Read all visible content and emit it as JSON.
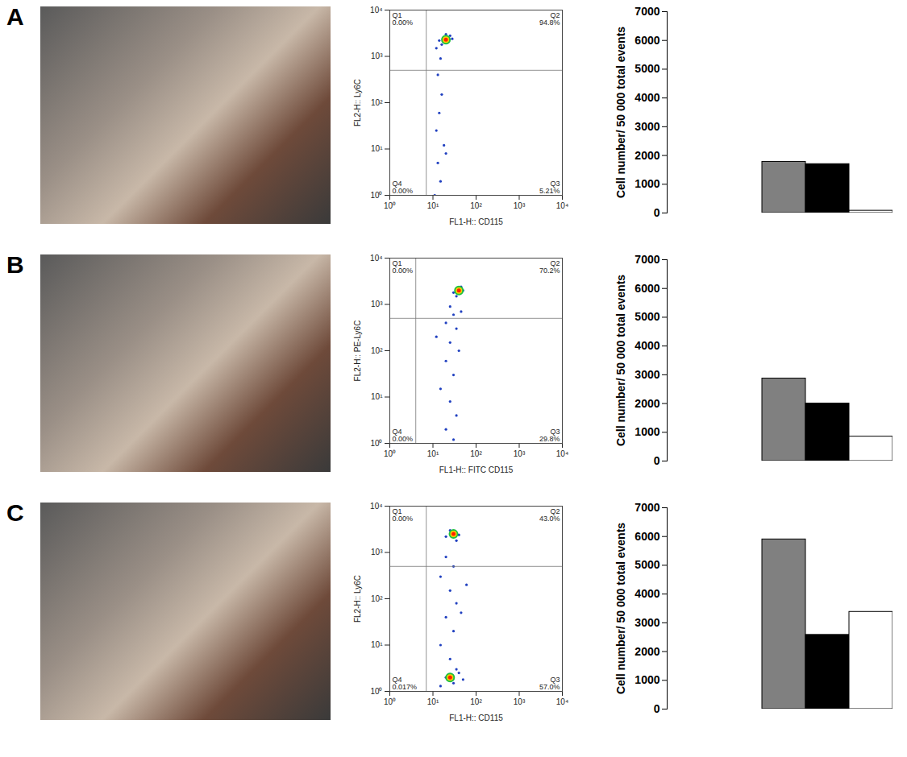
{
  "chart_data": [
    {
      "panel": "A",
      "type": "scatter",
      "log": true,
      "x_label": "FL1-H:: CD115",
      "y_label": "FL2-H:: Ly6C",
      "xlim": [
        1,
        10000
      ],
      "ylim": [
        1,
        10000
      ],
      "xticks": [
        {
          "value": 1,
          "label": "10⁰"
        },
        {
          "value": 10,
          "label": "10¹"
        },
        {
          "value": 100,
          "label": "10²"
        },
        {
          "value": 1000,
          "label": "10³"
        },
        {
          "value": 10000,
          "label": "10⁴"
        }
      ],
      "yticks": [
        {
          "value": 1,
          "label": "10⁰"
        },
        {
          "value": 10,
          "label": "10¹"
        },
        {
          "value": 100,
          "label": "10²"
        },
        {
          "value": 1000,
          "label": "10³"
        },
        {
          "value": 10000,
          "label": "10⁴"
        }
      ],
      "gate": {
        "x": 7,
        "y": 500
      },
      "quadrants": [
        {
          "name": "Q1",
          "label": "0.00%"
        },
        {
          "name": "Q2",
          "label": "94.8%"
        },
        {
          "name": "Q3",
          "label": "5.21%"
        },
        {
          "name": "Q4",
          "label": "0.00%"
        }
      ],
      "x": [
        14,
        18,
        22,
        25,
        16,
        20,
        28,
        12,
        15,
        13,
        16,
        14,
        12,
        18,
        13,
        15,
        20,
        11
      ],
      "y": [
        2200,
        2500,
        2000,
        2800,
        1800,
        3000,
        2400,
        1500,
        900,
        400,
        150,
        60,
        25,
        12,
        5,
        2,
        8,
        1
      ],
      "peaks": {
        "x": [
          20
        ],
        "y": [
          2300
        ]
      }
    },
    {
      "panel": "A",
      "type": "bar",
      "y_label": "Cell number/ 50 000 total events",
      "categories": [
        null,
        null,
        null
      ],
      "values": [
        1780,
        1700,
        80
      ],
      "colors": [
        "#808080",
        "#000000",
        "#ffffff"
      ],
      "ylim": [
        0,
        7000
      ],
      "yticks": [
        0,
        1000,
        2000,
        3000,
        4000,
        5000,
        6000,
        7000
      ],
      "tick_labels": "y"
    },
    {
      "panel": "B",
      "type": "scatter",
      "log": true,
      "x_label": "FL1-H:: FITC CD115",
      "y_label": "FL2-H:: PE-Ly6C",
      "xlim": [
        1,
        10000
      ],
      "ylim": [
        1,
        10000
      ],
      "xticks": [
        {
          "value": 1,
          "label": "10⁰"
        },
        {
          "value": 10,
          "label": "10¹"
        },
        {
          "value": 100,
          "label": "10²"
        },
        {
          "value": 1000,
          "label": "10³"
        },
        {
          "value": 10000,
          "label": "10⁴"
        }
      ],
      "yticks": [
        {
          "value": 1,
          "label": "10⁰"
        },
        {
          "value": 10,
          "label": "10¹"
        },
        {
          "value": 100,
          "label": "10²"
        },
        {
          "value": 1000,
          "label": "10³"
        },
        {
          "value": 10000,
          "label": "10⁴"
        }
      ],
      "gate": {
        "x": 4,
        "y": 500
      },
      "quadrants": [
        {
          "name": "Q1",
          "label": "0.00%"
        },
        {
          "name": "Q2",
          "label": "70.2%"
        },
        {
          "name": "Q3",
          "label": "29.8%"
        },
        {
          "name": "Q4",
          "label": "0.00%"
        }
      ],
      "x": [
        30,
        40,
        50,
        45,
        35,
        25,
        30,
        20,
        35,
        25,
        40,
        20,
        30,
        15,
        25,
        35,
        20,
        30,
        45,
        12
      ],
      "y": [
        1800,
        2200,
        2000,
        2400,
        1500,
        900,
        600,
        400,
        300,
        150,
        100,
        60,
        30,
        15,
        8,
        4,
        2,
        1.2,
        700,
        200
      ],
      "peaks": {
        "x": [
          40
        ],
        "y": [
          2000
        ]
      }
    },
    {
      "panel": "B",
      "type": "bar",
      "y_label": "Cell number/ 50 000 total events",
      "categories": [
        null,
        null,
        null
      ],
      "values": [
        2870,
        2000,
        850
      ],
      "colors": [
        "#808080",
        "#000000",
        "#ffffff"
      ],
      "ylim": [
        0,
        7000
      ],
      "yticks": [
        0,
        1000,
        2000,
        3000,
        4000,
        5000,
        6000,
        7000
      ],
      "tick_labels": "y"
    },
    {
      "panel": "C",
      "type": "scatter",
      "log": true,
      "x_label": "FL1-H:: CD115",
      "y_label": "FL2-H:: Ly6C",
      "xlim": [
        1,
        10000
      ],
      "ylim": [
        1,
        10000
      ],
      "xticks": [
        {
          "value": 1,
          "label": "10⁰"
        },
        {
          "value": 10,
          "label": "10¹"
        },
        {
          "value": 100,
          "label": "10²"
        },
        {
          "value": 1000,
          "label": "10³"
        },
        {
          "value": 10000,
          "label": "10⁴"
        }
      ],
      "yticks": [
        {
          "value": 1,
          "label": "10⁰"
        },
        {
          "value": 10,
          "label": "10¹"
        },
        {
          "value": 100,
          "label": "10²"
        },
        {
          "value": 1000,
          "label": "10³"
        },
        {
          "value": 10000,
          "label": "10⁴"
        }
      ],
      "gate": {
        "x": 7,
        "y": 500
      },
      "quadrants": [
        {
          "name": "Q1",
          "label": "0.00%"
        },
        {
          "name": "Q2",
          "label": "43.0%"
        },
        {
          "name": "Q3",
          "label": "57.0%"
        },
        {
          "name": "Q4",
          "label": "0.017%"
        }
      ],
      "x": [
        20,
        30,
        40,
        25,
        35,
        20,
        30,
        15,
        25,
        35,
        20,
        30,
        15,
        25,
        35,
        20,
        30,
        40,
        15,
        50,
        60,
        45
      ],
      "y": [
        2200,
        2600,
        2400,
        3000,
        1800,
        800,
        500,
        300,
        150,
        80,
        40,
        20,
        10,
        5,
        3,
        2,
        1.5,
        2.5,
        1.3,
        1.8,
        200,
        50
      ],
      "peaks": {
        "x": [
          30,
          25
        ],
        "y": [
          2500,
          2
        ]
      }
    },
    {
      "panel": "C",
      "type": "bar",
      "y_label": "Cell number/ 50 000 total events",
      "categories": [
        null,
        null,
        null
      ],
      "values": [
        5900,
        2580,
        3380
      ],
      "colors": [
        "#808080",
        "#000000",
        "#ffffff"
      ],
      "ylim": [
        0,
        7000
      ],
      "yticks": [
        0,
        1000,
        2000,
        3000,
        4000,
        5000,
        6000,
        7000
      ],
      "tick_labels": "y"
    }
  ]
}
